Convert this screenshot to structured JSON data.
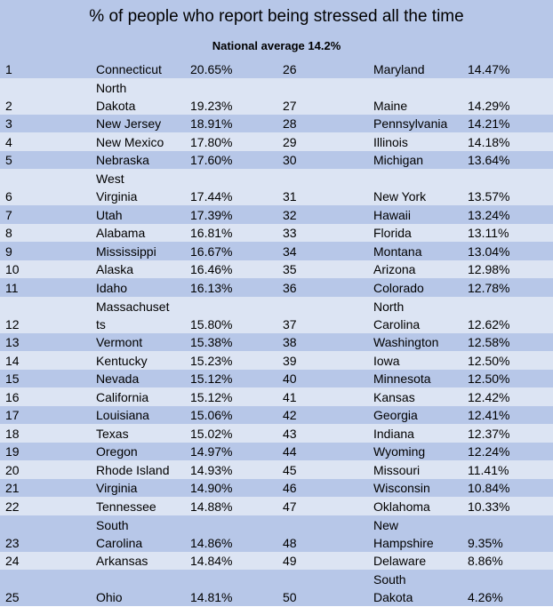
{
  "title": "% of people who report being stressed all the time",
  "subtitle": "National average 14.2%",
  "rows": [
    {
      "lr": "1",
      "ls": [
        "Connecticut"
      ],
      "lp": "20.65%",
      "rr": "26",
      "rs": [
        "Maryland"
      ],
      "rp": "14.47%"
    },
    {
      "lr": "2",
      "ls": [
        "North",
        "Dakota"
      ],
      "lp": "19.23%",
      "rr": "27",
      "rs": [
        "Maine"
      ],
      "rp": "14.29%"
    },
    {
      "lr": "3",
      "ls": [
        "New Jersey"
      ],
      "lp": "18.91%",
      "rr": "28",
      "rs": [
        "Pennsylvania"
      ],
      "rp": "14.21%"
    },
    {
      "lr": "4",
      "ls": [
        "New Mexico"
      ],
      "lp": "17.80%",
      "rr": "29",
      "rs": [
        "Illinois"
      ],
      "rp": "14.18%"
    },
    {
      "lr": "5",
      "ls": [
        "Nebraska"
      ],
      "lp": "17.60%",
      "rr": "30",
      "rs": [
        "Michigan"
      ],
      "rp": "13.64%"
    },
    {
      "lr": "6",
      "ls": [
        "West",
        "Virginia"
      ],
      "lp": "17.44%",
      "rr": "31",
      "rs": [
        "New York"
      ],
      "rp": "13.57%"
    },
    {
      "lr": "7",
      "ls": [
        "Utah"
      ],
      "lp": "17.39%",
      "rr": "32",
      "rs": [
        "Hawaii"
      ],
      "rp": "13.24%"
    },
    {
      "lr": "8",
      "ls": [
        "Alabama"
      ],
      "lp": "16.81%",
      "rr": "33",
      "rs": [
        "Florida"
      ],
      "rp": "13.11%"
    },
    {
      "lr": "9",
      "ls": [
        "Mississippi"
      ],
      "lp": "16.67%",
      "rr": "34",
      "rs": [
        "Montana"
      ],
      "rp": "13.04%"
    },
    {
      "lr": "10",
      "ls": [
        "Alaska"
      ],
      "lp": "16.46%",
      "rr": "35",
      "rs": [
        "Arizona"
      ],
      "rp": "12.98%"
    },
    {
      "lr": "11",
      "ls": [
        "Idaho"
      ],
      "lp": "16.13%",
      "rr": "36",
      "rs": [
        "Colorado"
      ],
      "rp": "12.78%"
    },
    {
      "lr": "12",
      "ls": [
        "Massachuset",
        "ts"
      ],
      "lp": "15.80%",
      "rr": "37",
      "rs": [
        "North",
        "Carolina"
      ],
      "rp": "12.62%"
    },
    {
      "lr": "13",
      "ls": [
        "Vermont"
      ],
      "lp": "15.38%",
      "rr": "38",
      "rs": [
        "Washington"
      ],
      "rp": "12.58%"
    },
    {
      "lr": "14",
      "ls": [
        "Kentucky"
      ],
      "lp": "15.23%",
      "rr": "39",
      "rs": [
        "Iowa"
      ],
      "rp": "12.50%"
    },
    {
      "lr": "15",
      "ls": [
        "Nevada"
      ],
      "lp": "15.12%",
      "rr": "40",
      "rs": [
        "Minnesota"
      ],
      "rp": "12.50%"
    },
    {
      "lr": "16",
      "ls": [
        "California"
      ],
      "lp": "15.12%",
      "rr": "41",
      "rs": [
        "Kansas"
      ],
      "rp": "12.42%"
    },
    {
      "lr": "17",
      "ls": [
        "Louisiana"
      ],
      "lp": "15.06%",
      "rr": "42",
      "rs": [
        "Georgia"
      ],
      "rp": "12.41%"
    },
    {
      "lr": "18",
      "ls": [
        "Texas"
      ],
      "lp": "15.02%",
      "rr": "43",
      "rs": [
        "Indiana"
      ],
      "rp": "12.37%"
    },
    {
      "lr": "19",
      "ls": [
        "Oregon"
      ],
      "lp": "14.97%",
      "rr": "44",
      "rs": [
        "Wyoming"
      ],
      "rp": "12.24%"
    },
    {
      "lr": "20",
      "ls": [
        "Rhode Island"
      ],
      "lp": "14.93%",
      "rr": "45",
      "rs": [
        "Missouri"
      ],
      "rp": "11.41%"
    },
    {
      "lr": "21",
      "ls": [
        "Virginia"
      ],
      "lp": "14.90%",
      "rr": "46",
      "rs": [
        "Wisconsin"
      ],
      "rp": "10.84%"
    },
    {
      "lr": "22",
      "ls": [
        "Tennessee"
      ],
      "lp": "14.88%",
      "rr": "47",
      "rs": [
        "Oklahoma"
      ],
      "rp": "10.33%"
    },
    {
      "lr": "23",
      "ls": [
        "South",
        "Carolina"
      ],
      "lp": "14.86%",
      "rr": "48",
      "rs": [
        "New",
        "Hampshire"
      ],
      "rp": "9.35%"
    },
    {
      "lr": "24",
      "ls": [
        "Arkansas"
      ],
      "lp": "14.84%",
      "rr": "49",
      "rs": [
        "Delaware"
      ],
      "rp": "8.86%"
    },
    {
      "lr": "25",
      "ls": [
        "",
        "Ohio"
      ],
      "lp": "14.81%",
      "rr": "50",
      "rs": [
        "South",
        "Dakota"
      ],
      "rp": "4.26%"
    }
  ]
}
